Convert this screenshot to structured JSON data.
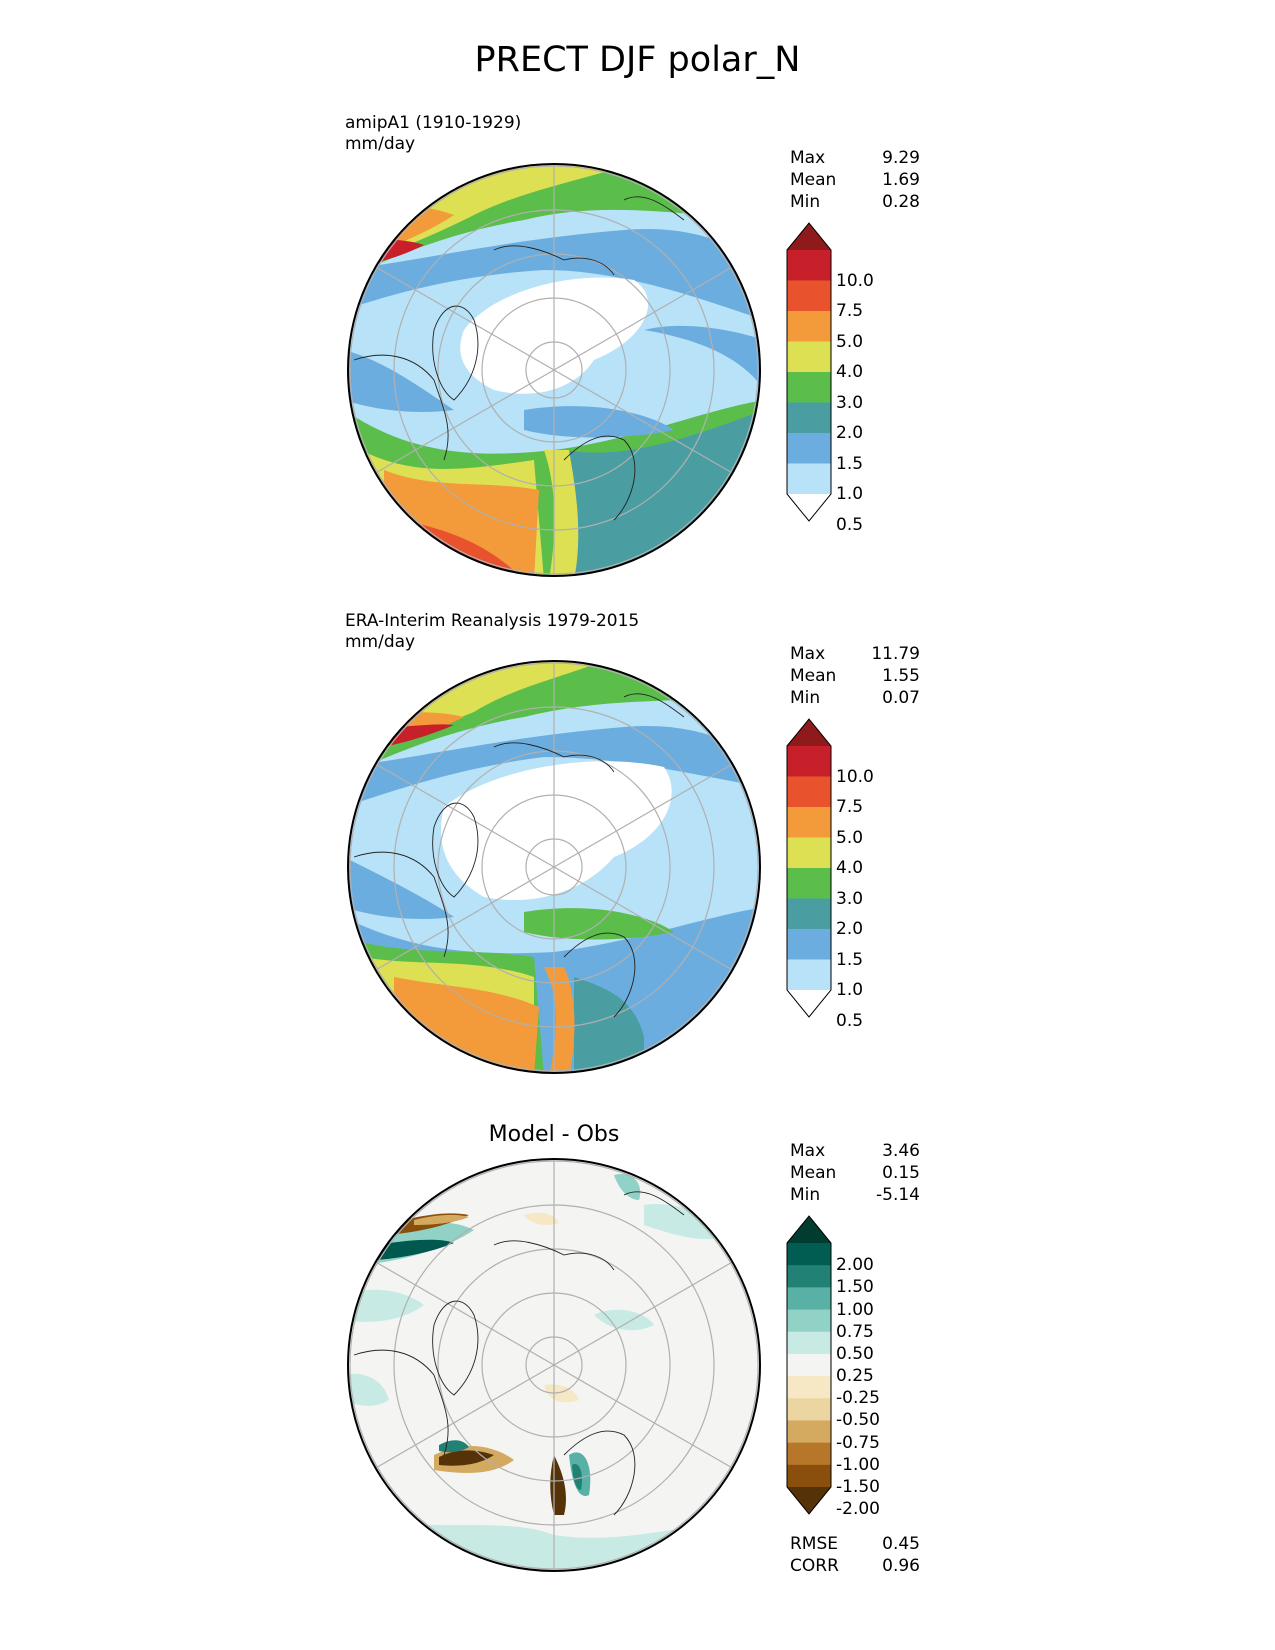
{
  "title": "PRECT DJF polar_N",
  "panels": [
    {
      "id": "test",
      "title_line1": "amipA1 (1910-1929)",
      "title_line2": "mm/day",
      "stats": [
        {
          "label": "Max",
          "value": "9.29"
        },
        {
          "label": "Mean",
          "value": "1.69"
        },
        {
          "label": "Min",
          "value": "0.28"
        }
      ],
      "colorbar": {
        "colors": [
          "#ffffff",
          "#b8e2f8",
          "#6cade0",
          "#4a9ea1",
          "#5bbd4a",
          "#dde053",
          "#f39a3b",
          "#e8532e",
          "#c8202b",
          "#8e1a1c"
        ],
        "labels": [
          "10.0",
          "7.5",
          "5.0",
          "4.0",
          "3.0",
          "2.0",
          "1.5",
          "1.0",
          "0.5"
        ]
      }
    },
    {
      "id": "ref",
      "title_line1": "ERA-Interim Reanalysis 1979-2015",
      "title_line2": "mm/day",
      "stats": [
        {
          "label": "Max",
          "value": "11.79"
        },
        {
          "label": "Mean",
          "value": "1.55"
        },
        {
          "label": "Min",
          "value": "0.07"
        }
      ],
      "colorbar": {
        "colors": [
          "#ffffff",
          "#b8e2f8",
          "#6cade0",
          "#4a9ea1",
          "#5bbd4a",
          "#dde053",
          "#f39a3b",
          "#e8532e",
          "#c8202b",
          "#8e1a1c"
        ],
        "labels": [
          "10.0",
          "7.5",
          "5.0",
          "4.0",
          "3.0",
          "2.0",
          "1.5",
          "1.0",
          "0.5"
        ]
      }
    },
    {
      "id": "diff",
      "title_center": "Model - Obs",
      "stats": [
        {
          "label": "Max",
          "value": "3.46"
        },
        {
          "label": "Mean",
          "value": "0.15"
        },
        {
          "label": "Min",
          "value": "-5.14"
        }
      ],
      "colorbar": {
        "colors": [
          "#553208",
          "#8b4f0d",
          "#b7772a",
          "#d3aa60",
          "#ebd5a0",
          "#f6e8c4",
          "#f4f4f2",
          "#c8eae4",
          "#91d2c6",
          "#58b1a4",
          "#208174",
          "#015c52",
          "#003c30"
        ],
        "labels": [
          "2.00",
          "1.50",
          "1.00",
          "0.75",
          "0.50",
          "0.25",
          "-0.25",
          "-0.50",
          "-0.75",
          "-1.00",
          "-1.50",
          "-2.00"
        ]
      },
      "metrics": [
        {
          "label": "RMSE",
          "value": "0.45"
        },
        {
          "label": "CORR",
          "value": "0.96"
        }
      ]
    }
  ]
}
